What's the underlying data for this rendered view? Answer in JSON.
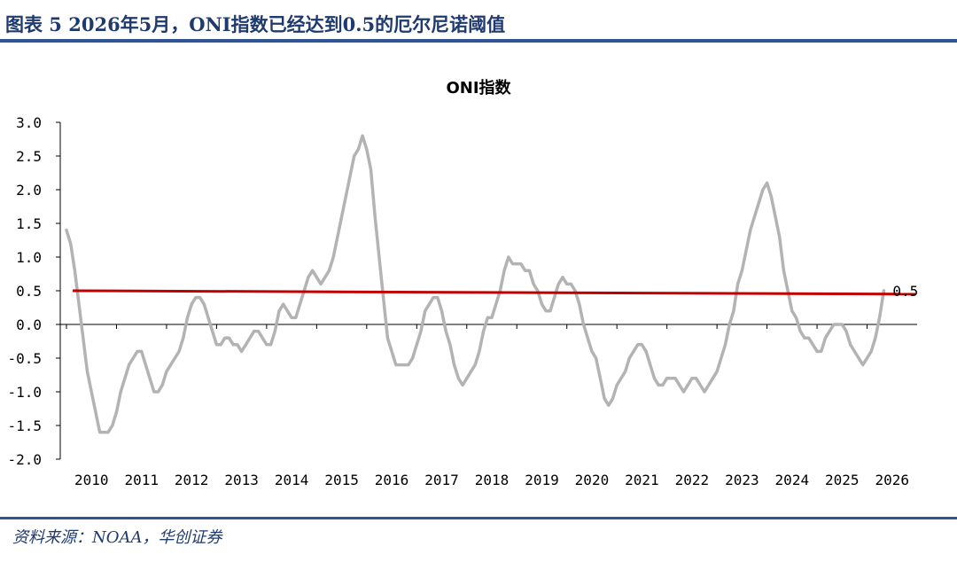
{
  "header": {
    "title": "图表 5 2026年5月，ONI指数已经达到0.5的厄尔尼诺阈值"
  },
  "footer": {
    "source": "资料来源：NOAA，华创证券"
  },
  "colors": {
    "series": "#b3b3b3",
    "threshold": "#c00000",
    "rule": "#2f5597"
  },
  "chart_data": {
    "type": "line",
    "title": "ONI指数",
    "xlabel": "",
    "ylabel": "",
    "ylim": [
      -2.0,
      3.0
    ],
    "yticks": [
      3.0,
      2.5,
      2.0,
      1.5,
      1.0,
      0.5,
      0.0,
      -0.5,
      -1.0,
      -1.5,
      -2.0
    ],
    "ytick_labels": [
      "3.0",
      "2.5",
      "2.0",
      "1.5",
      "1.0",
      "0.5",
      "0.0",
      "-0.5",
      "-1.0",
      "-1.5",
      "-2.0"
    ],
    "xticks": [
      "2010",
      "2011",
      "2012",
      "2013",
      "2014",
      "2015",
      "2016",
      "2017",
      "2018",
      "2019",
      "2020",
      "2021",
      "2022",
      "2023",
      "2024",
      "2025",
      "2026"
    ],
    "grid": false,
    "legend": "none",
    "series": [
      {
        "values": [
          1.4,
          1.2,
          0.8,
          0.3,
          -0.2,
          -0.7,
          -1.0,
          -1.3,
          -1.6,
          -1.6,
          -1.6,
          -1.5,
          -1.3,
          -1.0,
          -0.8,
          -0.6,
          -0.5,
          -0.4,
          -0.4,
          -0.6,
          -0.8,
          -1.0,
          -1.0,
          -0.9,
          -0.7,
          -0.6,
          -0.5,
          -0.4,
          -0.2,
          0.1,
          0.3,
          0.4,
          0.4,
          0.3,
          0.1,
          -0.1,
          -0.3,
          -0.3,
          -0.2,
          -0.2,
          -0.3,
          -0.3,
          -0.4,
          -0.3,
          -0.2,
          -0.1,
          -0.1,
          -0.2,
          -0.3,
          -0.3,
          -0.1,
          0.2,
          0.3,
          0.2,
          0.1,
          0.1,
          0.3,
          0.5,
          0.7,
          0.8,
          0.7,
          0.6,
          0.7,
          0.8,
          1.0,
          1.3,
          1.6,
          1.9,
          2.2,
          2.5,
          2.6,
          2.8,
          2.6,
          2.3,
          1.6,
          1.0,
          0.4,
          -0.2,
          -0.4,
          -0.6,
          -0.6,
          -0.6,
          -0.6,
          -0.5,
          -0.3,
          -0.1,
          0.2,
          0.3,
          0.4,
          0.4,
          0.2,
          -0.1,
          -0.3,
          -0.6,
          -0.8,
          -0.9,
          -0.8,
          -0.7,
          -0.6,
          -0.4,
          -0.1,
          0.1,
          0.1,
          0.3,
          0.5,
          0.8,
          1.0,
          0.9,
          0.9,
          0.9,
          0.8,
          0.8,
          0.6,
          0.5,
          0.3,
          0.2,
          0.2,
          0.4,
          0.6,
          0.7,
          0.6,
          0.6,
          0.5,
          0.3,
          0.0,
          -0.2,
          -0.4,
          -0.5,
          -0.8,
          -1.1,
          -1.2,
          -1.1,
          -0.9,
          -0.8,
          -0.7,
          -0.5,
          -0.4,
          -0.3,
          -0.3,
          -0.4,
          -0.6,
          -0.8,
          -0.9,
          -0.9,
          -0.8,
          -0.8,
          -0.8,
          -0.9,
          -1.0,
          -0.9,
          -0.8,
          -0.8,
          -0.9,
          -1.0,
          -0.9,
          -0.8,
          -0.7,
          -0.5,
          -0.3,
          0.0,
          0.2,
          0.6,
          0.8,
          1.1,
          1.4,
          1.6,
          1.8,
          2.0,
          2.1,
          1.9,
          1.6,
          1.3,
          0.8,
          0.5,
          0.2,
          0.1,
          -0.1,
          -0.2,
          -0.2,
          -0.3,
          -0.4,
          -0.4,
          -0.2,
          -0.1,
          0.0,
          0.0,
          0.0,
          -0.1,
          -0.3,
          -0.4,
          -0.5,
          -0.6,
          -0.5,
          -0.4,
          -0.2,
          0.1,
          0.5
        ]
      },
      {
        "values": [
          0.5,
          0.45
        ]
      }
    ],
    "annotations": [
      {
        "text": "0.5"
      }
    ]
  }
}
